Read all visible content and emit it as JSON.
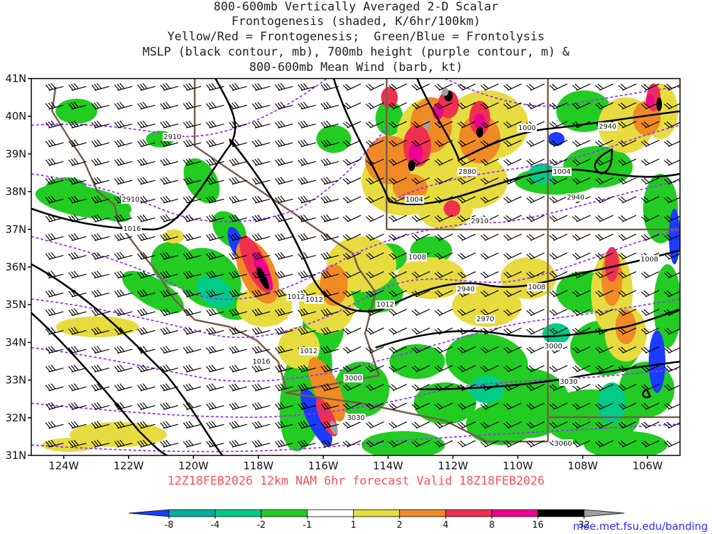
{
  "title": {
    "lines": [
      "800-600mb Vertically Averaged 2-D Scalar",
      "Frontogenesis (shaded, K/6hr/100km)",
      "Yellow/Red = Frontogenesis;  Green/Blue = Frontolysis",
      "MSLP (black contour, mb), 700mb height (purple contour, m) &",
      "800-600mb Mean Wind (barb, kt)"
    ]
  },
  "map": {
    "lat_labels": [
      "41N",
      "40N",
      "39N",
      "38N",
      "37N",
      "36N",
      "35N",
      "34N",
      "33N",
      "32N",
      "31N"
    ],
    "lon_labels": [
      "124W",
      "122W",
      "120W",
      "118W",
      "116W",
      "114W",
      "112W",
      "110W",
      "108W",
      "106W"
    ],
    "lat_range": [
      31,
      41
    ],
    "lon_range": [
      -125,
      -105
    ],
    "colors": {
      "mslp": "#000000",
      "height700": "#9b30ff",
      "borders": "#7a5a48",
      "frontolysis_strong": "#1a3cff",
      "frontolysis_mod": "#00cc88",
      "frontolysis_weak": "#22cc22",
      "frontogenesis_weak": "#e6dc40",
      "frontogenesis_mod": "#f08a24",
      "frontogenesis_strong": "#f03050",
      "frontogenesis_vstrong": "#ee0090",
      "frontogenesis_max": "#000000",
      "frontogenesis_extreme": "#a0a0a0"
    },
    "mslp_labels": [
      "1000",
      "1004",
      "1004",
      "1008",
      "1008",
      "1008",
      "1012",
      "1012",
      "1012",
      "1016",
      "1016",
      "1012"
    ],
    "height_labels": [
      "2910",
      "2910",
      "2940",
      "2880",
      "2940",
      "2910",
      "2940",
      "2970",
      "3000",
      "3000",
      "3030",
      "3030",
      "3060"
    ]
  },
  "footer": {
    "text": "12Z18FEB2026 12km NAM 6hr forecast Valid 18Z18FEB2026"
  },
  "colorbar": {
    "labels": [
      "-8",
      "-4",
      "-2",
      "-1",
      "1",
      "2",
      "4",
      "8",
      "16",
      "32"
    ],
    "colors": [
      "#1a3cff",
      "#00b0a0",
      "#00cc88",
      "#22cc22",
      "#ffffff",
      "#e6dc40",
      "#f08a24",
      "#f03050",
      "#ee0090",
      "#000000",
      "#a0a0a0"
    ]
  },
  "credit": "moe.met.fsu.edu/banding"
}
